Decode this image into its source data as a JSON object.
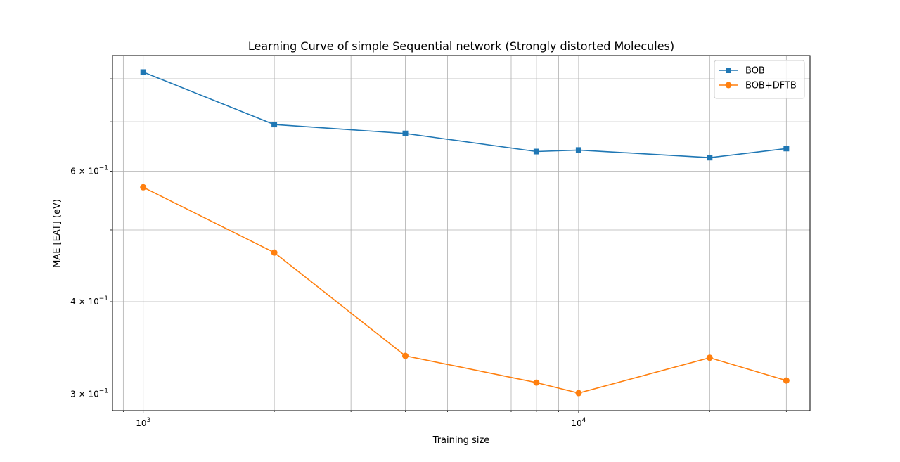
{
  "chart_data": {
    "type": "line",
    "title": "Learning Curve of simple Sequential network (Strongly distorted Molecules)",
    "xlabel": "Training size",
    "ylabel": "MAE [EAT] (eV)",
    "xscale": "log",
    "yscale": "log",
    "xlim": [
      850,
      34000
    ],
    "ylim": [
      0.285,
      0.86
    ],
    "grid": "both (major and minor)",
    "legend_position": "top-right",
    "x_ticks": [
      {
        "value": 1000,
        "base": "10",
        "exp": "3"
      },
      {
        "value": 10000,
        "base": "10",
        "exp": "4"
      }
    ],
    "y_ticks": [
      {
        "value": 0.3,
        "base": "3 × 10",
        "exp": "−1"
      },
      {
        "value": 0.4,
        "base": "4 × 10",
        "exp": "−1"
      },
      {
        "value": 0.6,
        "base": "6 × 10",
        "exp": "−1"
      }
    ],
    "x": [
      1000,
      2000,
      4000,
      8000,
      10000,
      20000,
      30000
    ],
    "series": [
      {
        "name": "BOB",
        "color": "#1f77b4",
        "marker": "square",
        "values": [
          0.817,
          0.694,
          0.675,
          0.638,
          0.641,
          0.626,
          0.644
        ]
      },
      {
        "name": "BOB+DFTB",
        "color": "#ff7f0e",
        "marker": "circle",
        "values": [
          0.571,
          0.466,
          0.338,
          0.311,
          0.301,
          0.336,
          0.313
        ]
      }
    ]
  }
}
